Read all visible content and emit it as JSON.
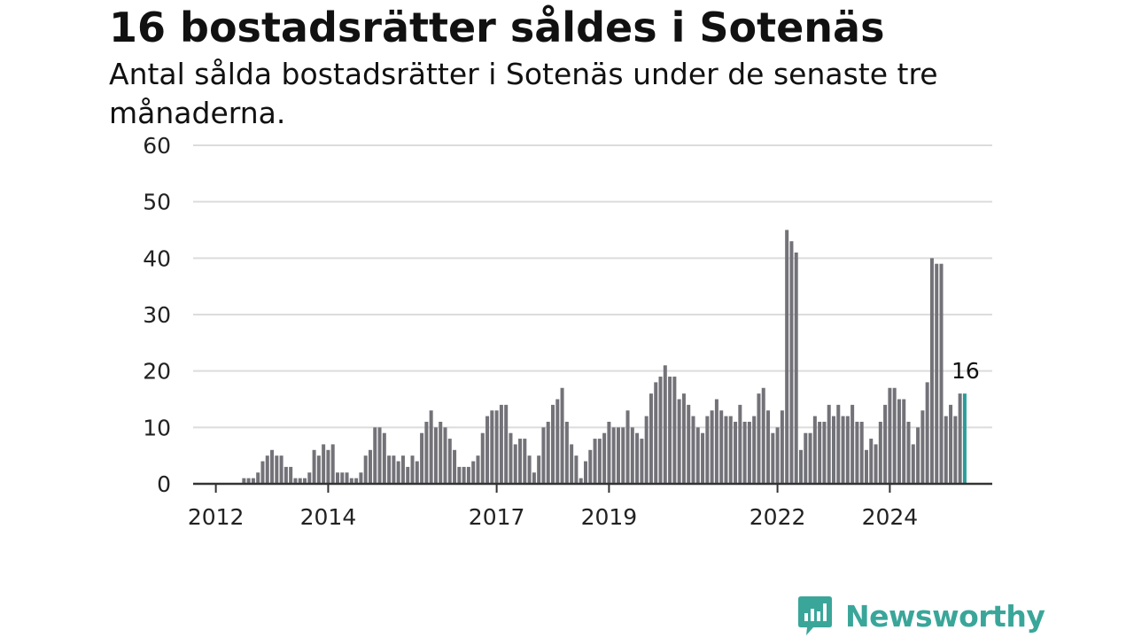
{
  "header": {
    "title": "16 bostadsrätter såldes i Sotenäs",
    "subtitle": "Antal sålda bostadsrätter i Sotenäs under de senaste tre månaderna."
  },
  "logo": {
    "text": "Newsworthy",
    "icon": "newsworthy-chart-bubble-icon",
    "color": "#3aa69a"
  },
  "chart_data": {
    "type": "bar",
    "start": "2011-09",
    "interval": "month",
    "x_ticks": [
      "2012",
      "2014",
      "2017",
      "2019",
      "2022",
      "2024"
    ],
    "y_ticks": [
      "0",
      "10",
      "20",
      "30",
      "40",
      "50",
      "60"
    ],
    "ylim": [
      0,
      60
    ],
    "grid": true,
    "highlight_label": "16",
    "colors": {
      "bar": "#727278",
      "highlight": "#2a9d98",
      "grid": "#dcdcdc",
      "axis": "#333333"
    },
    "values": [
      0,
      0,
      0,
      0,
      0,
      0,
      0,
      0,
      0,
      0,
      1,
      1,
      1,
      2,
      4,
      5,
      6,
      5,
      5,
      3,
      3,
      1,
      1,
      1,
      2,
      6,
      5,
      7,
      6,
      7,
      2,
      2,
      2,
      1,
      1,
      2,
      5,
      6,
      10,
      10,
      9,
      5,
      5,
      4,
      5,
      3,
      5,
      4,
      9,
      11,
      13,
      10,
      11,
      10,
      8,
      6,
      3,
      3,
      3,
      4,
      5,
      9,
      12,
      13,
      13,
      14,
      14,
      9,
      7,
      8,
      8,
      5,
      2,
      5,
      10,
      11,
      14,
      15,
      17,
      11,
      7,
      5,
      1,
      4,
      6,
      8,
      8,
      9,
      11,
      10,
      10,
      10,
      13,
      10,
      9,
      8,
      12,
      16,
      18,
      19,
      21,
      19,
      19,
      15,
      16,
      14,
      12,
      10,
      9,
      12,
      13,
      15,
      13,
      12,
      12,
      11,
      14,
      11,
      11,
      12,
      16,
      17,
      13,
      9,
      10,
      13,
      45,
      43,
      41,
      6,
      9,
      9,
      12,
      11,
      11,
      14,
      12,
      14,
      12,
      12,
      14,
      11,
      11,
      6,
      8,
      7,
      11,
      14,
      17,
      17,
      15,
      15,
      11,
      7,
      10,
      13,
      18,
      40,
      39,
      39,
      12,
      14,
      12,
      16,
      16
    ],
    "highlight_index": 164
  }
}
